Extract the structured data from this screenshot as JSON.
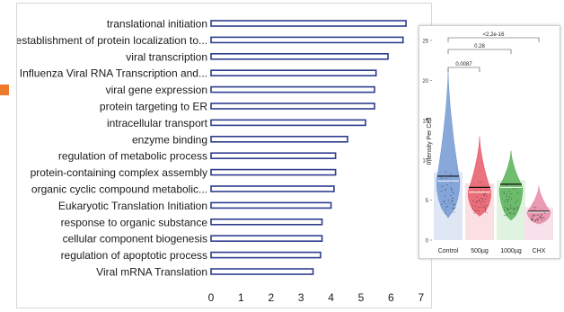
{
  "colors": {
    "bar_edge": "#2e3d8f",
    "bar_fill": "#ffffff",
    "side_marker": "#ee7b2c",
    "violin": [
      "#7499d4",
      "#e85a68",
      "#57b257",
      "#e88aa6"
    ],
    "violin_bg": [
      "#dfe7f5",
      "#fbe0e3",
      "#e0f2e0",
      "#f7e1ea"
    ]
  },
  "chart_data": [
    {
      "type": "bar",
      "orientation": "horizontal",
      "categories": [
        "translational initiation",
        "establishment of protein localization to...",
        "viral transcription",
        "Influenza Viral RNA Transcription and...",
        "viral gene expression",
        "protein targeting to ER",
        "intracellular transport",
        "enzyme binding",
        "regulation of metabolic process",
        "protein-containing complex assembly",
        "organic cyclic compound metabolic...",
        "Eukaryotic Translation Initiation",
        "response to organic substance",
        "cellular component biogenesis",
        "regulation of apoptotic process",
        "Viral mRNA Translation"
      ],
      "values": [
        6.5,
        6.4,
        5.9,
        5.5,
        5.45,
        5.45,
        5.15,
        4.55,
        4.15,
        4.15,
        4.1,
        4.0,
        3.7,
        3.7,
        3.65,
        3.4
      ],
      "xlim": [
        0,
        7
      ],
      "xticks": [
        "0",
        "1",
        "2",
        "3",
        "4",
        "5",
        "6",
        "7"
      ],
      "grid": false
    },
    {
      "type": "violin",
      "categories": [
        "Control",
        "500µg",
        "1000µg",
        "CHX"
      ],
      "ylabel": "Intensity Per Cell",
      "ylim": [
        0,
        25
      ],
      "yticks": [
        "0",
        "5",
        "10",
        "15",
        "20",
        "25"
      ],
      "series": [
        {
          "min": 2.8,
          "max": 21.5,
          "mean": 8.0,
          "median": 7.4
        },
        {
          "min": 3.0,
          "max": 13.0,
          "mean": 6.6,
          "median": 6.0
        },
        {
          "min": 2.5,
          "max": 11.2,
          "mean": 7.0,
          "median": 6.6
        },
        {
          "min": 2.0,
          "max": 6.8,
          "mean": 3.6,
          "median": 3.5
        }
      ],
      "comparisons": [
        {
          "from": 0,
          "to": 1,
          "label": "0.0087"
        },
        {
          "from": 0,
          "to": 2,
          "label": "0.28"
        },
        {
          "from": 0,
          "to": 3,
          "label": "<2.2e-16"
        }
      ]
    }
  ]
}
